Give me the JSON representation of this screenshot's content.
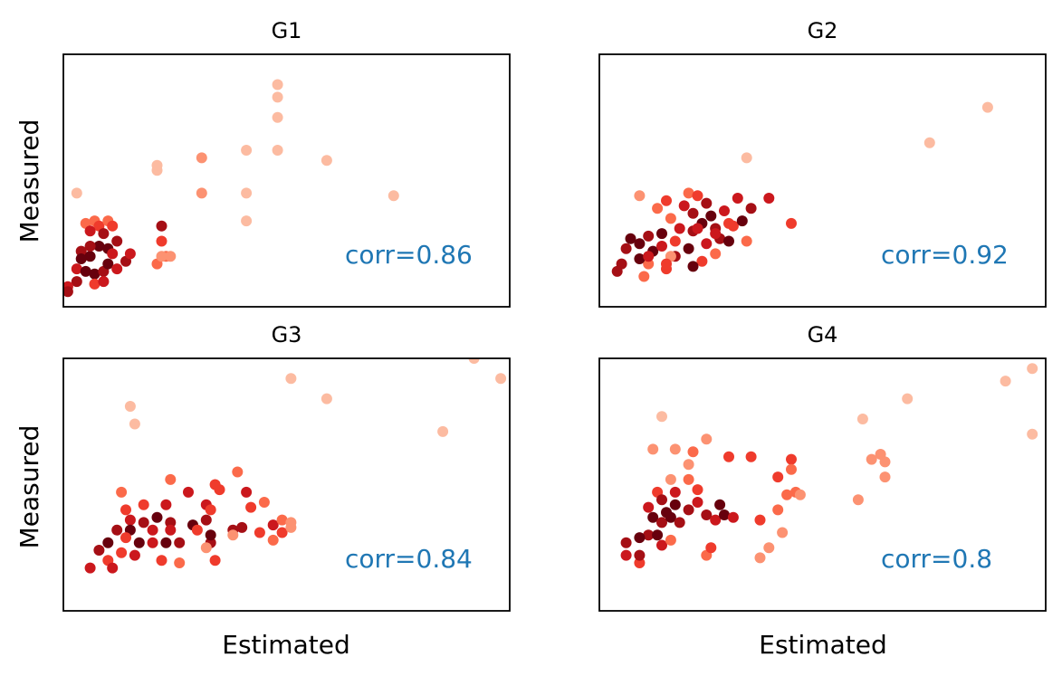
{
  "figure": {
    "xlabel": "Estimated",
    "ylabel": "Measured",
    "corr_color": "#1f77b4",
    "point_palette": [
      "#fcbba1",
      "#fc9272",
      "#fb6a4a",
      "#ef3b2c",
      "#cb181d",
      "#a50f15",
      "#67000d"
    ]
  },
  "chart_data": [
    {
      "type": "scatter",
      "title": "G1",
      "annotation": "corr=0.86",
      "xlim": [
        0,
        100
      ],
      "ylim": [
        0,
        100
      ],
      "ticks_visible": false,
      "points": [
        {
          "x": 3,
          "y": 45,
          "c": 0
        },
        {
          "x": 21,
          "y": 54,
          "c": 0
        },
        {
          "x": 21,
          "y": 56,
          "c": 0
        },
        {
          "x": 31,
          "y": 59,
          "c": 1
        },
        {
          "x": 31,
          "y": 45,
          "c": 1
        },
        {
          "x": 41,
          "y": 62,
          "c": 0
        },
        {
          "x": 41,
          "y": 45,
          "c": 0
        },
        {
          "x": 41,
          "y": 34,
          "c": 0
        },
        {
          "x": 48,
          "y": 75,
          "c": 0
        },
        {
          "x": 48,
          "y": 83,
          "c": 0
        },
        {
          "x": 48,
          "y": 62,
          "c": 0
        },
        {
          "x": 48,
          "y": 88,
          "c": 0
        },
        {
          "x": 59,
          "y": 58,
          "c": 0
        },
        {
          "x": 74,
          "y": 44,
          "c": 0
        },
        {
          "x": 5,
          "y": 33,
          "c": 2
        },
        {
          "x": 7,
          "y": 34,
          "c": 2
        },
        {
          "x": 8,
          "y": 32,
          "c": 3
        },
        {
          "x": 10,
          "y": 34,
          "c": 2
        },
        {
          "x": 11,
          "y": 32,
          "c": 3
        },
        {
          "x": 6,
          "y": 30,
          "c": 4
        },
        {
          "x": 9,
          "y": 29,
          "c": 5
        },
        {
          "x": 4,
          "y": 22,
          "c": 5
        },
        {
          "x": 6,
          "y": 20,
          "c": 6
        },
        {
          "x": 8,
          "y": 24,
          "c": 6
        },
        {
          "x": 10,
          "y": 23,
          "c": 6
        },
        {
          "x": 12,
          "y": 26,
          "c": 5
        },
        {
          "x": 11,
          "y": 21,
          "c": 4
        },
        {
          "x": 3,
          "y": 15,
          "c": 4
        },
        {
          "x": 5,
          "y": 14,
          "c": 6
        },
        {
          "x": 7,
          "y": 13,
          "c": 6
        },
        {
          "x": 9,
          "y": 14,
          "c": 5
        },
        {
          "x": 10,
          "y": 17,
          "c": 6
        },
        {
          "x": 12,
          "y": 15,
          "c": 4
        },
        {
          "x": 3,
          "y": 10,
          "c": 5
        },
        {
          "x": 1,
          "y": 8,
          "c": 4
        },
        {
          "x": 1,
          "y": 6,
          "c": 5
        },
        {
          "x": 7,
          "y": 9,
          "c": 3
        },
        {
          "x": 9,
          "y": 10,
          "c": 4
        },
        {
          "x": 14,
          "y": 18,
          "c": 5
        },
        {
          "x": 15,
          "y": 21,
          "c": 4
        },
        {
          "x": 4,
          "y": 19,
          "c": 6
        },
        {
          "x": 6,
          "y": 24,
          "c": 5
        },
        {
          "x": 22,
          "y": 32,
          "c": 5
        },
        {
          "x": 22,
          "y": 26,
          "c": 3
        },
        {
          "x": 23,
          "y": 20,
          "c": 2
        },
        {
          "x": 21,
          "y": 17,
          "c": 2
        },
        {
          "x": 22,
          "y": 20,
          "c": 1
        },
        {
          "x": 24,
          "y": 20,
          "c": 1
        }
      ]
    },
    {
      "type": "scatter",
      "title": "G2",
      "annotation": "corr=0.92",
      "xlim": [
        0,
        100
      ],
      "ylim": [
        0,
        100
      ],
      "ticks_visible": false,
      "points": [
        {
          "x": 9,
          "y": 44,
          "c": 1
        },
        {
          "x": 33,
          "y": 59,
          "c": 0
        },
        {
          "x": 74,
          "y": 65,
          "c": 0
        },
        {
          "x": 87,
          "y": 79,
          "c": 0
        },
        {
          "x": 13,
          "y": 39,
          "c": 2
        },
        {
          "x": 15,
          "y": 42,
          "c": 3
        },
        {
          "x": 20,
          "y": 45,
          "c": 2
        },
        {
          "x": 22,
          "y": 44,
          "c": 3
        },
        {
          "x": 19,
          "y": 40,
          "c": 4
        },
        {
          "x": 24,
          "y": 41,
          "c": 5
        },
        {
          "x": 16,
          "y": 35,
          "c": 2
        },
        {
          "x": 21,
          "y": 37,
          "c": 5
        },
        {
          "x": 25,
          "y": 36,
          "c": 6
        },
        {
          "x": 28,
          "y": 38,
          "c": 4
        },
        {
          "x": 30,
          "y": 32,
          "c": 3
        },
        {
          "x": 26,
          "y": 31,
          "c": 5
        },
        {
          "x": 23,
          "y": 33,
          "c": 6
        },
        {
          "x": 21,
          "y": 30,
          "c": 5
        },
        {
          "x": 18,
          "y": 31,
          "c": 4
        },
        {
          "x": 14,
          "y": 29,
          "c": 6
        },
        {
          "x": 11,
          "y": 28,
          "c": 5
        },
        {
          "x": 7,
          "y": 27,
          "c": 6
        },
        {
          "x": 6,
          "y": 23,
          "c": 5
        },
        {
          "x": 9,
          "y": 25,
          "c": 6
        },
        {
          "x": 12,
          "y": 22,
          "c": 6
        },
        {
          "x": 14,
          "y": 24,
          "c": 4
        },
        {
          "x": 17,
          "y": 20,
          "c": 5
        },
        {
          "x": 20,
          "y": 23,
          "c": 6
        },
        {
          "x": 24,
          "y": 25,
          "c": 4
        },
        {
          "x": 27,
          "y": 27,
          "c": 5
        },
        {
          "x": 29,
          "y": 26,
          "c": 6
        },
        {
          "x": 15,
          "y": 15,
          "c": 3
        },
        {
          "x": 11,
          "y": 17,
          "c": 2
        },
        {
          "x": 5,
          "y": 17,
          "c": 5
        },
        {
          "x": 9,
          "y": 19,
          "c": 6
        },
        {
          "x": 4,
          "y": 14,
          "c": 5
        },
        {
          "x": 10,
          "y": 12,
          "c": 2
        },
        {
          "x": 16,
          "y": 20,
          "c": 1
        },
        {
          "x": 15,
          "y": 17,
          "c": 3
        },
        {
          "x": 23,
          "y": 18,
          "c": 3
        },
        {
          "x": 26,
          "y": 21,
          "c": 2
        },
        {
          "x": 26,
          "y": 29,
          "c": 4
        },
        {
          "x": 21,
          "y": 16,
          "c": 6
        },
        {
          "x": 29,
          "y": 33,
          "c": 3
        },
        {
          "x": 33,
          "y": 26,
          "c": 2
        },
        {
          "x": 31,
          "y": 43,
          "c": 4
        },
        {
          "x": 34,
          "y": 39,
          "c": 5
        },
        {
          "x": 11,
          "y": 20,
          "c": 4
        },
        {
          "x": 17,
          "y": 26,
          "c": 3
        },
        {
          "x": 22,
          "y": 31,
          "c": 4
        },
        {
          "x": 32,
          "y": 34,
          "c": 6
        },
        {
          "x": 38,
          "y": 43,
          "c": 4
        },
        {
          "x": 43,
          "y": 33,
          "c": 3
        }
      ]
    },
    {
      "type": "scatter",
      "title": "G3",
      "annotation": "corr=0.84",
      "xlim": [
        0,
        100
      ],
      "ylim": [
        0,
        100
      ],
      "ticks_visible": false,
      "points": [
        {
          "x": 15,
          "y": 81,
          "c": 0
        },
        {
          "x": 16,
          "y": 74,
          "c": 0
        },
        {
          "x": 51,
          "y": 92,
          "c": 0
        },
        {
          "x": 59,
          "y": 84,
          "c": 0
        },
        {
          "x": 85,
          "y": 71,
          "c": 0
        },
        {
          "x": 92,
          "y": 100,
          "c": 0
        },
        {
          "x": 98,
          "y": 92,
          "c": 0
        },
        {
          "x": 13,
          "y": 47,
          "c": 2
        },
        {
          "x": 18,
          "y": 42,
          "c": 3
        },
        {
          "x": 23,
          "y": 42,
          "c": 4
        },
        {
          "x": 24,
          "y": 52,
          "c": 2
        },
        {
          "x": 28,
          "y": 47,
          "c": 4
        },
        {
          "x": 32,
          "y": 42,
          "c": 4
        },
        {
          "x": 32,
          "y": 36,
          "c": 5
        },
        {
          "x": 29,
          "y": 34,
          "c": 6
        },
        {
          "x": 24,
          "y": 35,
          "c": 5
        },
        {
          "x": 21,
          "y": 37,
          "c": 6
        },
        {
          "x": 14,
          "y": 40,
          "c": 3
        },
        {
          "x": 15,
          "y": 36,
          "c": 4
        },
        {
          "x": 12,
          "y": 32,
          "c": 5
        },
        {
          "x": 15,
          "y": 32,
          "c": 6
        },
        {
          "x": 18,
          "y": 35,
          "c": 5
        },
        {
          "x": 20,
          "y": 32,
          "c": 4
        },
        {
          "x": 24,
          "y": 32,
          "c": 4
        },
        {
          "x": 26,
          "y": 27,
          "c": 5
        },
        {
          "x": 23,
          "y": 27,
          "c": 6
        },
        {
          "x": 20,
          "y": 27,
          "c": 4
        },
        {
          "x": 17,
          "y": 27,
          "c": 6
        },
        {
          "x": 14,
          "y": 29,
          "c": 3
        },
        {
          "x": 10,
          "y": 27,
          "c": 6
        },
        {
          "x": 8,
          "y": 24,
          "c": 5
        },
        {
          "x": 10,
          "y": 20,
          "c": 3
        },
        {
          "x": 13,
          "y": 23,
          "c": 3
        },
        {
          "x": 16,
          "y": 22,
          "c": 4
        },
        {
          "x": 6,
          "y": 17,
          "c": 4
        },
        {
          "x": 11,
          "y": 17,
          "c": 4
        },
        {
          "x": 22,
          "y": 20,
          "c": 3
        },
        {
          "x": 26,
          "y": 19,
          "c": 2
        },
        {
          "x": 30,
          "y": 32,
          "c": 3
        },
        {
          "x": 33,
          "y": 27,
          "c": 5
        },
        {
          "x": 35,
          "y": 48,
          "c": 3
        },
        {
          "x": 39,
          "y": 55,
          "c": 2
        },
        {
          "x": 33,
          "y": 30,
          "c": 6
        },
        {
          "x": 38,
          "y": 32,
          "c": 5
        },
        {
          "x": 41,
          "y": 47,
          "c": 4
        },
        {
          "x": 34,
          "y": 50,
          "c": 3
        },
        {
          "x": 33,
          "y": 40,
          "c": 3
        },
        {
          "x": 42,
          "y": 41,
          "c": 3
        },
        {
          "x": 40,
          "y": 33,
          "c": 5
        },
        {
          "x": 45,
          "y": 43,
          "c": 2
        },
        {
          "x": 47,
          "y": 34,
          "c": 4
        },
        {
          "x": 49,
          "y": 31,
          "c": 3
        },
        {
          "x": 49,
          "y": 36,
          "c": 2
        },
        {
          "x": 51,
          "y": 33,
          "c": 1
        },
        {
          "x": 51,
          "y": 35,
          "c": 1
        },
        {
          "x": 38,
          "y": 30,
          "c": 1
        },
        {
          "x": 32,
          "y": 25,
          "c": 1
        },
        {
          "x": 34,
          "y": 20,
          "c": 3
        },
        {
          "x": 44,
          "y": 31,
          "c": 3
        },
        {
          "x": 47,
          "y": 28,
          "c": 2
        }
      ]
    },
    {
      "type": "scatter",
      "title": "G4",
      "annotation": "corr=0.8",
      "xlim": [
        0,
        100
      ],
      "ylim": [
        0,
        100
      ],
      "ticks_visible": false,
      "points": [
        {
          "x": 14,
          "y": 77,
          "c": 0
        },
        {
          "x": 69,
          "y": 84,
          "c": 0
        },
        {
          "x": 59,
          "y": 76,
          "c": 0
        },
        {
          "x": 91,
          "y": 91,
          "c": 0
        },
        {
          "x": 97,
          "y": 96,
          "c": 0
        },
        {
          "x": 97,
          "y": 70,
          "c": 0
        },
        {
          "x": 12,
          "y": 64,
          "c": 1
        },
        {
          "x": 17,
          "y": 64,
          "c": 1
        },
        {
          "x": 24,
          "y": 68,
          "c": 1
        },
        {
          "x": 21,
          "y": 63,
          "c": 2
        },
        {
          "x": 20,
          "y": 58,
          "c": 1
        },
        {
          "x": 29,
          "y": 61,
          "c": 3
        },
        {
          "x": 16,
          "y": 52,
          "c": 1
        },
        {
          "x": 20,
          "y": 52,
          "c": 2
        },
        {
          "x": 13,
          "y": 47,
          "c": 3
        },
        {
          "x": 17,
          "y": 47,
          "c": 4
        },
        {
          "x": 22,
          "y": 48,
          "c": 3
        },
        {
          "x": 11,
          "y": 41,
          "c": 4
        },
        {
          "x": 14,
          "y": 44,
          "c": 5
        },
        {
          "x": 17,
          "y": 42,
          "c": 6
        },
        {
          "x": 20,
          "y": 40,
          "c": 5
        },
        {
          "x": 22,
          "y": 43,
          "c": 4
        },
        {
          "x": 24,
          "y": 38,
          "c": 5
        },
        {
          "x": 27,
          "y": 42,
          "c": 6
        },
        {
          "x": 12,
          "y": 37,
          "c": 6
        },
        {
          "x": 15,
          "y": 39,
          "c": 6
        },
        {
          "x": 14,
          "y": 35,
          "c": 5
        },
        {
          "x": 16,
          "y": 37,
          "c": 6
        },
        {
          "x": 18,
          "y": 35,
          "c": 5
        },
        {
          "x": 11,
          "y": 30,
          "c": 5
        },
        {
          "x": 9,
          "y": 29,
          "c": 6
        },
        {
          "x": 6,
          "y": 27,
          "c": 5
        },
        {
          "x": 13,
          "y": 30,
          "c": 6
        },
        {
          "x": 14,
          "y": 26,
          "c": 4
        },
        {
          "x": 16,
          "y": 28,
          "c": 2
        },
        {
          "x": 6,
          "y": 22,
          "c": 4
        },
        {
          "x": 9,
          "y": 19,
          "c": 3
        },
        {
          "x": 9,
          "y": 22,
          "c": 5
        },
        {
          "x": 24,
          "y": 22,
          "c": 2
        },
        {
          "x": 25,
          "y": 25,
          "c": 3
        },
        {
          "x": 26,
          "y": 36,
          "c": 4
        },
        {
          "x": 28,
          "y": 38,
          "c": 6
        },
        {
          "x": 30,
          "y": 37,
          "c": 4
        },
        {
          "x": 34,
          "y": 61,
          "c": 3
        },
        {
          "x": 36,
          "y": 36,
          "c": 3
        },
        {
          "x": 36,
          "y": 21,
          "c": 1
        },
        {
          "x": 38,
          "y": 25,
          "c": 1
        },
        {
          "x": 41,
          "y": 31,
          "c": 1
        },
        {
          "x": 40,
          "y": 40,
          "c": 2
        },
        {
          "x": 42,
          "y": 46,
          "c": 2
        },
        {
          "x": 40,
          "y": 53,
          "c": 3
        },
        {
          "x": 43,
          "y": 60,
          "c": 3
        },
        {
          "x": 43,
          "y": 56,
          "c": 2
        },
        {
          "x": 44,
          "y": 47,
          "c": 2
        },
        {
          "x": 45,
          "y": 46,
          "c": 1
        },
        {
          "x": 58,
          "y": 44,
          "c": 1
        },
        {
          "x": 61,
          "y": 60,
          "c": 1
        },
        {
          "x": 63,
          "y": 62,
          "c": 1
        },
        {
          "x": 64,
          "y": 59,
          "c": 1
        },
        {
          "x": 64,
          "y": 53,
          "c": 1
        }
      ]
    }
  ]
}
